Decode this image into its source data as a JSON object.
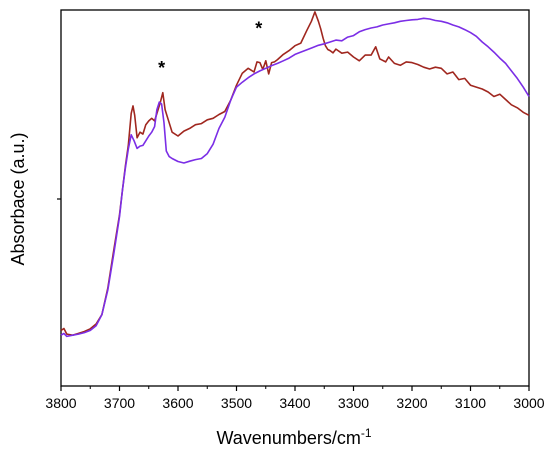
{
  "chart_data": {
    "type": "line",
    "title": "",
    "xlabel": "Wavenumbers/cm",
    "xlabel_superscript": "-1",
    "ylabel": "Absorbace (a.u.)",
    "xlim": [
      3800,
      3000
    ],
    "x_reversed": true,
    "ylim": [
      0,
      1
    ],
    "x_ticks": [
      3800,
      3700,
      3600,
      3500,
      3400,
      3300,
      3200,
      3100,
      3000
    ],
    "x_tick_labels": [
      "3800",
      "3700",
      "3600",
      "3500",
      "3400",
      "3300",
      "3200",
      "3100",
      "3000"
    ],
    "y_tick_labels": false,
    "grid": false,
    "legend": "none",
    "annotations": [
      {
        "text": "*",
        "x": 3628,
        "y": 0.83
      },
      {
        "text": "*",
        "x": 3462,
        "y": 0.935
      }
    ],
    "series": [
      {
        "color": "#a0271f",
        "x": [
          3800,
          3795,
          3790,
          3780,
          3770,
          3760,
          3750,
          3740,
          3730,
          3720,
          3710,
          3700,
          3695,
          3690,
          3685,
          3680,
          3677,
          3674,
          3670,
          3665,
          3660,
          3655,
          3650,
          3645,
          3640,
          3635,
          3630,
          3626,
          3622,
          3615,
          3610,
          3600,
          3590,
          3580,
          3570,
          3560,
          3550,
          3540,
          3530,
          3520,
          3510,
          3500,
          3490,
          3480,
          3470,
          3465,
          3460,
          3455,
          3450,
          3445,
          3440,
          3435,
          3430,
          3420,
          3410,
          3400,
          3390,
          3380,
          3372,
          3366,
          3360,
          3356,
          3352,
          3348,
          3344,
          3340,
          3335,
          3330,
          3320,
          3310,
          3300,
          3290,
          3280,
          3270,
          3262,
          3255,
          3245,
          3240,
          3230,
          3220,
          3210,
          3200,
          3190,
          3180,
          3170,
          3160,
          3150,
          3140,
          3130,
          3120,
          3110,
          3100,
          3090,
          3080,
          3070,
          3060,
          3050,
          3040,
          3030,
          3020,
          3010,
          3000
        ],
        "y": [
          0.148,
          0.153,
          0.138,
          0.135,
          0.14,
          0.145,
          0.152,
          0.165,
          0.19,
          0.26,
          0.36,
          0.455,
          0.52,
          0.585,
          0.64,
          0.725,
          0.745,
          0.72,
          0.66,
          0.675,
          0.67,
          0.695,
          0.705,
          0.712,
          0.705,
          0.73,
          0.755,
          0.78,
          0.735,
          0.7,
          0.675,
          0.665,
          0.678,
          0.685,
          0.695,
          0.698,
          0.708,
          0.712,
          0.722,
          0.73,
          0.76,
          0.8,
          0.832,
          0.845,
          0.835,
          0.862,
          0.86,
          0.842,
          0.865,
          0.83,
          0.86,
          0.862,
          0.868,
          0.882,
          0.892,
          0.905,
          0.912,
          0.945,
          0.97,
          0.995,
          0.97,
          0.95,
          0.925,
          0.905,
          0.895,
          0.892,
          0.886,
          0.896,
          0.885,
          0.888,
          0.875,
          0.865,
          0.88,
          0.88,
          0.902,
          0.87,
          0.862,
          0.875,
          0.858,
          0.853,
          0.862,
          0.86,
          0.855,
          0.848,
          0.843,
          0.848,
          0.845,
          0.83,
          0.835,
          0.815,
          0.818,
          0.8,
          0.795,
          0.79,
          0.782,
          0.77,
          0.776,
          0.762,
          0.748,
          0.74,
          0.728,
          0.72
        ]
      },
      {
        "color": "#7b2ee6",
        "x": [
          3800,
          3795,
          3790,
          3780,
          3770,
          3760,
          3750,
          3740,
          3730,
          3720,
          3710,
          3700,
          3695,
          3690,
          3685,
          3680,
          3675,
          3670,
          3665,
          3660,
          3655,
          3650,
          3645,
          3640,
          3636,
          3632,
          3628,
          3624,
          3620,
          3615,
          3610,
          3600,
          3590,
          3580,
          3570,
          3560,
          3550,
          3540,
          3530,
          3520,
          3510,
          3500,
          3490,
          3480,
          3470,
          3460,
          3450,
          3440,
          3430,
          3420,
          3410,
          3400,
          3390,
          3380,
          3370,
          3360,
          3350,
          3340,
          3330,
          3320,
          3310,
          3300,
          3290,
          3280,
          3270,
          3260,
          3250,
          3240,
          3230,
          3220,
          3210,
          3200,
          3190,
          3180,
          3170,
          3160,
          3150,
          3140,
          3130,
          3120,
          3110,
          3100,
          3090,
          3080,
          3070,
          3060,
          3050,
          3040,
          3030,
          3020,
          3010,
          3000
        ],
        "y": [
          0.135,
          0.14,
          0.132,
          0.135,
          0.138,
          0.142,
          0.148,
          0.16,
          0.19,
          0.255,
          0.35,
          0.45,
          0.52,
          0.58,
          0.63,
          0.668,
          0.652,
          0.632,
          0.638,
          0.64,
          0.652,
          0.665,
          0.675,
          0.69,
          0.735,
          0.755,
          0.75,
          0.7,
          0.625,
          0.61,
          0.605,
          0.597,
          0.593,
          0.598,
          0.602,
          0.605,
          0.618,
          0.643,
          0.685,
          0.715,
          0.76,
          0.795,
          0.808,
          0.82,
          0.83,
          0.838,
          0.845,
          0.852,
          0.858,
          0.865,
          0.872,
          0.882,
          0.888,
          0.894,
          0.9,
          0.906,
          0.91,
          0.915,
          0.92,
          0.918,
          0.928,
          0.932,
          0.942,
          0.948,
          0.952,
          0.955,
          0.96,
          0.963,
          0.966,
          0.97,
          0.972,
          0.974,
          0.975,
          0.978,
          0.976,
          0.972,
          0.97,
          0.966,
          0.96,
          0.955,
          0.948,
          0.94,
          0.93,
          0.915,
          0.902,
          0.888,
          0.872,
          0.858,
          0.838,
          0.818,
          0.795,
          0.77
        ]
      }
    ]
  }
}
